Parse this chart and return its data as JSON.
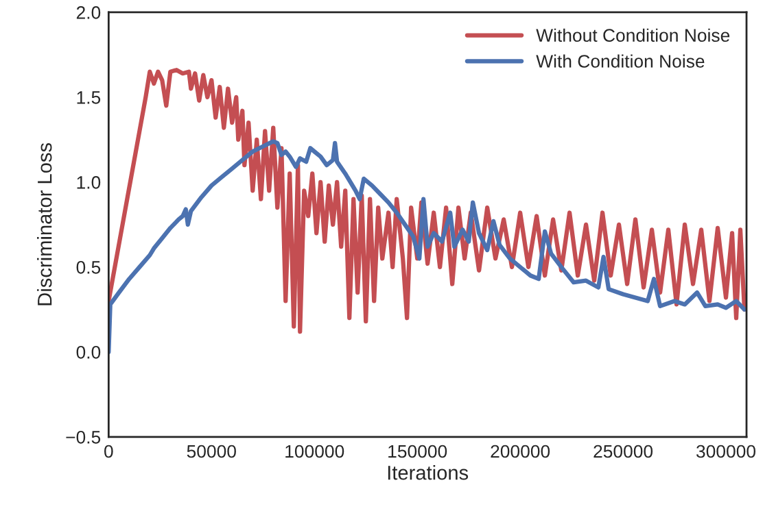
{
  "chart_data": {
    "type": "line",
    "xlabel": "Iterations",
    "ylabel": "Discriminator Loss",
    "xlim": [
      0,
      310000
    ],
    "ylim": [
      -0.5,
      2.0
    ],
    "xticks": [
      0,
      50000,
      100000,
      150000,
      200000,
      250000,
      300000
    ],
    "yticks": [
      {
        "value": -0.5,
        "label": "−0.5"
      },
      {
        "value": 0,
        "label": "0.0"
      },
      0.5,
      {
        "value": 1,
        "label": "1.0"
      },
      1.5,
      {
        "value": 2,
        "label": "2.0"
      }
    ],
    "grid": false,
    "legend": "top right",
    "marker": "none",
    "line_style": "solid",
    "series": [
      {
        "name": "Without Condition Noise",
        "color": "#c44e52",
        "x": [
          0,
          3000,
          6000,
          9000,
          12000,
          15000,
          18000,
          20000,
          22000,
          24000,
          26000,
          28000,
          30000,
          33000,
          36000,
          39000,
          40000,
          42000,
          44000,
          46000,
          48000,
          50000,
          52000,
          54000,
          56000,
          58000,
          60000,
          62000,
          63000,
          65000,
          66000,
          68000,
          70000,
          72000,
          74000,
          76000,
          78000,
          80000,
          82000,
          84000,
          86000,
          88000,
          90000,
          92000,
          93000,
          95000,
          97000,
          99000,
          101000,
          103000,
          105000,
          107000,
          109000,
          111000,
          113000,
          115000,
          117000,
          119000,
          121000,
          123000,
          125000,
          127000,
          129000,
          131000,
          133000,
          136000,
          138000,
          140000,
          143000,
          145000,
          147000,
          150000,
          152000,
          155000,
          158000,
          161000,
          164000,
          167000,
          170000,
          173000,
          176000,
          180000,
          184000,
          188000,
          192000,
          196000,
          200000,
          204000,
          208000,
          212000,
          216000,
          220000,
          224000,
          228000,
          232000,
          236000,
          240000,
          244000,
          248000,
          252000,
          256000,
          260000,
          264000,
          268000,
          272000,
          276000,
          280000,
          284000,
          288000,
          292000,
          296000,
          300000,
          303000,
          305000,
          307000,
          309000
        ],
        "values": [
          0.3,
          0.5,
          0.7,
          0.9,
          1.1,
          1.3,
          1.5,
          1.65,
          1.58,
          1.65,
          1.6,
          1.45,
          1.65,
          1.66,
          1.64,
          1.65,
          1.55,
          1.64,
          1.48,
          1.63,
          1.5,
          1.6,
          1.38,
          1.56,
          1.32,
          1.55,
          1.35,
          1.5,
          1.25,
          1.42,
          1.1,
          1.35,
          0.95,
          1.25,
          0.9,
          1.3,
          0.95,
          1.32,
          0.85,
          1.2,
          0.3,
          1.05,
          0.15,
          1.1,
          0.12,
          0.95,
          0.8,
          1.05,
          0.7,
          1.0,
          0.65,
          0.98,
          0.75,
          1.0,
          0.62,
          0.95,
          0.2,
          0.9,
          0.35,
          0.92,
          0.18,
          0.9,
          0.3,
          0.85,
          0.55,
          0.82,
          0.5,
          0.9,
          0.55,
          0.2,
          0.85,
          0.55,
          0.88,
          0.52,
          0.82,
          0.5,
          0.85,
          0.4,
          0.85,
          0.55,
          0.82,
          0.48,
          0.85,
          0.55,
          0.78,
          0.5,
          0.82,
          0.5,
          0.8,
          0.45,
          0.78,
          0.48,
          0.82,
          0.45,
          0.75,
          0.42,
          0.82,
          0.45,
          0.75,
          0.4,
          0.78,
          0.38,
          0.72,
          0.35,
          0.72,
          0.28,
          0.75,
          0.4,
          0.72,
          0.3,
          0.73,
          0.32,
          0.7,
          0.2,
          0.72,
          0.25
        ]
      },
      {
        "name": "With Condition Noise",
        "color": "#4c72b0",
        "x": [
          0,
          800,
          5000,
          10000,
          15000,
          20000,
          22000,
          26000,
          30000,
          34000,
          36000,
          37500,
          38500,
          40000,
          45000,
          50000,
          55000,
          60000,
          65000,
          70000,
          75000,
          80000,
          82000,
          84000,
          86000,
          88000,
          91000,
          93000,
          96000,
          98000,
          100000,
          103000,
          106000,
          109000,
          110000,
          111000,
          115000,
          120000,
          122000,
          124000,
          128000,
          132000,
          136000,
          140000,
          144000,
          148000,
          151000,
          153000,
          155000,
          158000,
          162000,
          166000,
          168000,
          172000,
          175000,
          177000,
          180000,
          184000,
          187000,
          190000,
          195000,
          200000,
          205000,
          209000,
          212000,
          215000,
          220000,
          226000,
          232000,
          238000,
          240500,
          243000,
          250000,
          256000,
          262000,
          265000,
          268000,
          275000,
          280000,
          286000,
          290000,
          296000,
          300000,
          305000,
          309000
        ],
        "values": [
          0,
          0.28,
          0.35,
          0.43,
          0.5,
          0.57,
          0.61,
          0.67,
          0.73,
          0.78,
          0.8,
          0.84,
          0.75,
          0.83,
          0.91,
          0.98,
          1.03,
          1.08,
          1.13,
          1.18,
          1.21,
          1.24,
          1.23,
          1.16,
          1.18,
          1.15,
          1.09,
          1.14,
          1.12,
          1.2,
          1.18,
          1.15,
          1.1,
          1.13,
          1.23,
          1.12,
          1.05,
          0.95,
          0.9,
          1.02,
          0.98,
          0.93,
          0.88,
          0.82,
          0.75,
          0.68,
          0.55,
          0.9,
          0.62,
          0.7,
          0.65,
          0.82,
          0.62,
          0.72,
          0.65,
          0.88,
          0.7,
          0.6,
          0.77,
          0.63,
          0.55,
          0.5,
          0.45,
          0.43,
          0.71,
          0.58,
          0.5,
          0.41,
          0.42,
          0.38,
          0.56,
          0.37,
          0.34,
          0.32,
          0.3,
          0.43,
          0.27,
          0.3,
          0.28,
          0.35,
          0.27,
          0.28,
          0.26,
          0.3,
          0.25
        ]
      }
    ]
  }
}
